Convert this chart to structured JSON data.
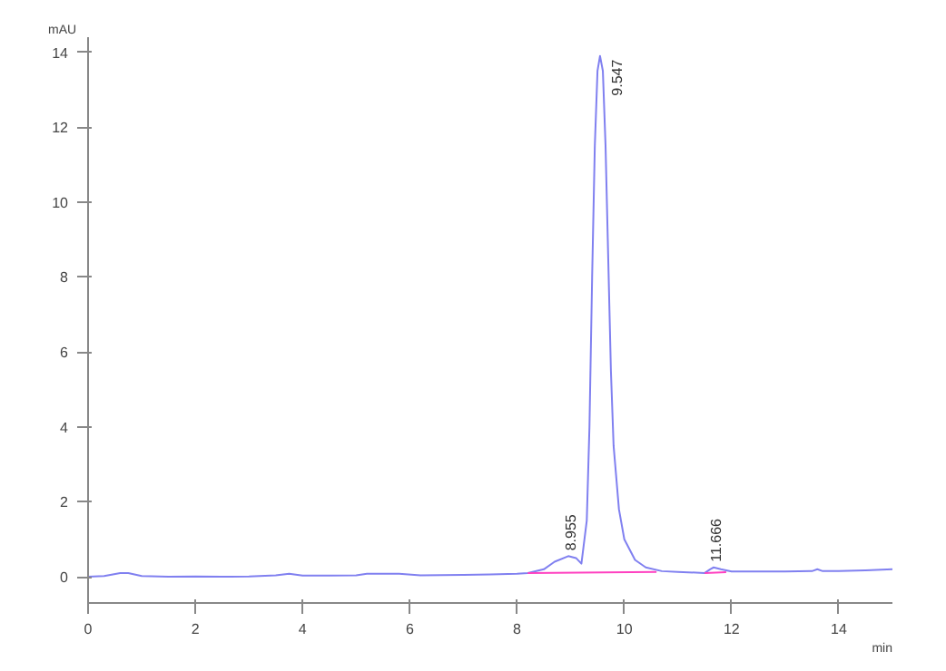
{
  "chart_data": {
    "type": "line",
    "xlabel": "min",
    "ylabel": "mAU",
    "xlim": [
      0,
      15
    ],
    "ylim": [
      -0.7,
      14.4
    ],
    "xticks": [
      0,
      2,
      4,
      6,
      8,
      10,
      12,
      14
    ],
    "yticks": [
      0,
      2,
      4,
      6,
      8,
      10,
      12,
      14
    ],
    "series": [
      {
        "color": "#8080f0",
        "x": [
          0,
          0.3,
          0.6,
          0.75,
          1.0,
          1.5,
          2.0,
          2.5,
          3.0,
          3.5,
          3.75,
          4.0,
          4.5,
          5.0,
          5.2,
          5.8,
          6.2,
          7.0,
          7.5,
          8.0,
          8.2,
          8.5,
          8.7,
          8.955,
          9.1,
          9.2,
          9.3,
          9.35,
          9.4,
          9.45,
          9.5,
          9.547,
          9.6,
          9.65,
          9.7,
          9.75,
          9.8,
          9.9,
          10.0,
          10.2,
          10.4,
          10.7,
          11.0,
          11.5,
          11.6,
          11.666,
          11.8,
          12.0,
          12.5,
          13.0,
          13.5,
          13.6,
          13.7,
          14.0,
          14.5,
          15.0
        ],
        "values": [
          0.0,
          0.02,
          0.1,
          0.1,
          0.02,
          0.0,
          0.01,
          0.0,
          0.01,
          0.04,
          0.08,
          0.03,
          0.03,
          0.04,
          0.08,
          0.08,
          0.04,
          0.05,
          0.06,
          0.08,
          0.1,
          0.2,
          0.4,
          0.55,
          0.5,
          0.35,
          1.5,
          4.0,
          8.0,
          11.5,
          13.5,
          13.9,
          13.5,
          11.5,
          8.5,
          5.5,
          3.5,
          1.8,
          1.0,
          0.45,
          0.25,
          0.15,
          0.13,
          0.1,
          0.2,
          0.25,
          0.2,
          0.14,
          0.14,
          0.14,
          0.15,
          0.2,
          0.15,
          0.15,
          0.17,
          0.2
        ]
      },
      {
        "color": "#ff40c0",
        "x": [
          8.2,
          10.6
        ],
        "values": [
          0.1,
          0.13
        ]
      },
      {
        "color": "#ff40c0",
        "x": [
          11.5,
          11.9
        ],
        "values": [
          0.1,
          0.12
        ]
      }
    ],
    "annotations": [
      {
        "text": "9.547",
        "x": 9.547,
        "y": 13.9
      },
      {
        "text": "8.955",
        "x": 8.955,
        "y": 0.55
      },
      {
        "text": "11.666",
        "x": 11.666,
        "y": 0.25
      }
    ]
  }
}
